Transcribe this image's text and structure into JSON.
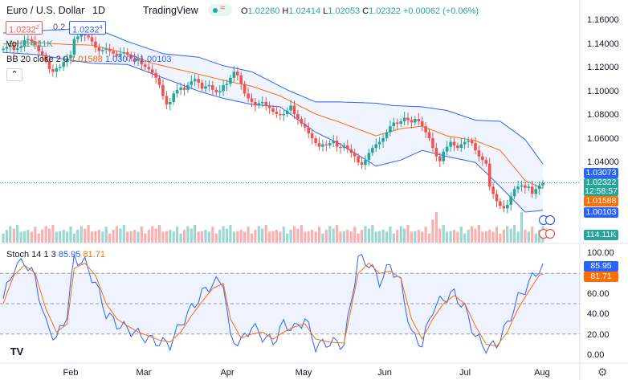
{
  "header": {
    "symbol": "Euro / U.S. Dollar",
    "interval": "1D",
    "brand": "TradingView",
    "ohlc": {
      "o_label": "O",
      "o_value": "1.02260",
      "h_label": "H",
      "h_value": "1.02414",
      "l_label": "L",
      "l_value": "1.02053",
      "c_label": "C",
      "c_value": "1.02322",
      "change": "+0.00062 (+0.06%)"
    }
  },
  "trade": {
    "sell_price": "1.0232",
    "sell_sup": "2",
    "spread": "0.2",
    "buy_price": "1.0232",
    "buy_sup": "4"
  },
  "indicators": {
    "volume": {
      "label": "Vol",
      "value": "114.11K"
    },
    "bb": {
      "label": "BB 20 close 2 0",
      "basis": "1.01588",
      "upper": "1.03073",
      "lower": "1.00103"
    },
    "stoch": {
      "label": "Stoch 14 1 3",
      "k": "85.95",
      "d": "81.71"
    }
  },
  "price_axis": {
    "ticks": [
      "1.16000",
      "1.14000",
      "1.12000",
      "1.10000",
      "1.08000",
      "1.06000",
      "1.04000"
    ],
    "badges": {
      "upper": "1.03073",
      "last": "1.02322",
      "countdown": "12:58:57",
      "basis": "1.01588",
      "lower": "1.00103",
      "volume": "114.11K"
    }
  },
  "stoch_axis": {
    "ticks": [
      "100.00",
      "60.00",
      "40.00",
      "20.00",
      "0.00"
    ],
    "badges": {
      "k": "85.95",
      "d": "81.71"
    }
  },
  "time_axis": {
    "labels": [
      "Feb",
      "Mar",
      "Apr",
      "May",
      "Jun",
      "Jul",
      "Aug"
    ]
  },
  "colors": {
    "up": "#26a69a",
    "down": "#ef5350",
    "bb_band": "#2962ff",
    "bb_basis": "#ff6d00",
    "stoch_k": "#2962ff",
    "stoch_d": "#ff6d00",
    "last_price": "#26a69a"
  },
  "chart_data": [
    {
      "type": "candlestick",
      "title": "Euro / U.S. Dollar · 1D",
      "ylim": [
        0.995,
        1.165
      ],
      "x_range": [
        "Jan",
        "Aug"
      ],
      "closes": [
        1.134,
        1.1355,
        1.137,
        1.133,
        1.1345,
        1.136,
        1.141,
        1.142,
        1.14,
        1.137,
        1.132,
        1.129,
        1.124,
        1.117,
        1.115,
        1.118,
        1.119,
        1.123,
        1.126,
        1.129,
        1.142,
        1.144,
        1.146,
        1.145,
        1.1435,
        1.14,
        1.135,
        1.132,
        1.133,
        1.134,
        1.132,
        1.13,
        1.128,
        1.13,
        1.131,
        1.129,
        1.126,
        1.124,
        1.126,
        1.121,
        1.119,
        1.117,
        1.114,
        1.11,
        1.104,
        1.095,
        1.088,
        1.09,
        1.097,
        1.1,
        1.102,
        1.1,
        1.104,
        1.107,
        1.109,
        1.106,
        1.101,
        1.103,
        1.104,
        1.1,
        1.098,
        1.099,
        1.104,
        1.105,
        1.11,
        1.115,
        1.112,
        1.105,
        1.097,
        1.093,
        1.09,
        1.087,
        1.089,
        1.09,
        1.087,
        1.085,
        1.082,
        1.08,
        1.079,
        1.08,
        1.083,
        1.087,
        1.08,
        1.076,
        1.072,
        1.069,
        1.064,
        1.06,
        1.056,
        1.053,
        1.055,
        1.054,
        1.056,
        1.058,
        1.053,
        1.052,
        1.054,
        1.051,
        1.048,
        1.045,
        1.04,
        1.038,
        1.042,
        1.048,
        1.052,
        1.055,
        1.057,
        1.06,
        1.065,
        1.07,
        1.073,
        1.072,
        1.074,
        1.077,
        1.075,
        1.073,
        1.076,
        1.074,
        1.07,
        1.065,
        1.06,
        1.052,
        1.045,
        1.041,
        1.049,
        1.053,
        1.057,
        1.054,
        1.052,
        1.055,
        1.057,
        1.058,
        1.056,
        1.05,
        1.045,
        1.042,
        1.039,
        1.02,
        1.014,
        1.008,
        1.004,
        1.002,
        1.005,
        1.012,
        1.018,
        1.02,
        1.021,
        1.019,
        1.02,
        1.014,
        1.018,
        1.021,
        1.02322
      ],
      "bb_upper_anchors": [
        [
          0,
          1.147
        ],
        [
          10,
          1.149
        ],
        [
          18,
          1.15
        ],
        [
          25,
          1.152
        ],
        [
          35,
          1.14
        ],
        [
          45,
          1.13
        ],
        [
          55,
          1.127
        ],
        [
          62,
          1.12
        ],
        [
          70,
          1.115
        ],
        [
          80,
          1.1
        ],
        [
          88,
          1.09
        ],
        [
          95,
          1.09
        ],
        [
          105,
          1.089
        ],
        [
          110,
          1.087
        ],
        [
          118,
          1.086
        ],
        [
          125,
          1.083
        ],
        [
          133,
          1.075
        ],
        [
          140,
          1.074
        ],
        [
          147,
          1.059
        ],
        [
          154,
          1.0307
        ]
      ],
      "bb_basis_anchors": [
        [
          0,
          1.138
        ],
        [
          10,
          1.139
        ],
        [
          18,
          1.1375
        ],
        [
          25,
          1.137
        ],
        [
          35,
          1.13
        ],
        [
          42,
          1.122
        ],
        [
          55,
          1.113
        ],
        [
          62,
          1.108
        ],
        [
          70,
          1.103
        ],
        [
          78,
          1.095
        ],
        [
          88,
          1.08
        ],
        [
          95,
          1.073
        ],
        [
          105,
          1.062
        ],
        [
          112,
          1.068
        ],
        [
          118,
          1.07
        ],
        [
          125,
          1.062
        ],
        [
          133,
          1.058
        ],
        [
          140,
          1.05
        ],
        [
          147,
          1.025
        ],
        [
          154,
          1.0159
        ]
      ],
      "bb_lower_anchors": [
        [
          0,
          1.131
        ],
        [
          10,
          1.129
        ],
        [
          18,
          1.125
        ],
        [
          25,
          1.122
        ],
        [
          35,
          1.121
        ],
        [
          45,
          1.11
        ],
        [
          55,
          1.099
        ],
        [
          62,
          1.093
        ],
        [
          70,
          1.088
        ],
        [
          78,
          1.086
        ],
        [
          88,
          1.065
        ],
        [
          95,
          1.055
        ],
        [
          105,
          1.037
        ],
        [
          112,
          1.042
        ],
        [
          118,
          1.05
        ],
        [
          125,
          1.045
        ],
        [
          133,
          1.04
        ],
        [
          140,
          1.02
        ],
        [
          147,
          0.999
        ],
        [
          154,
          1.001
        ]
      ]
    },
    {
      "type": "bar",
      "title": "Vol",
      "ylabel": "Volume",
      "last_value": "114.11K",
      "relative_volume_pattern": [
        0.3,
        0.34,
        0.38,
        0.42,
        0.46,
        0.36,
        0.3,
        0.26,
        0.32,
        0.4
      ]
    },
    {
      "type": "line",
      "title": "Stoch 14 1 3",
      "ylim": [
        0,
        100
      ],
      "reference_lines": [
        80,
        50,
        20
      ],
      "series": [
        {
          "name": "%K",
          "anchors": [
            [
              0,
              55
            ],
            [
              3,
              85
            ],
            [
              6,
              92
            ],
            [
              9,
              75
            ],
            [
              12,
              30
            ],
            [
              15,
              15
            ],
            [
              18,
              40
            ],
            [
              20,
              95
            ],
            [
              23,
              90
            ],
            [
              26,
              70
            ],
            [
              29,
              40
            ],
            [
              32,
              30
            ],
            [
              35,
              25
            ],
            [
              38,
              20
            ],
            [
              41,
              15
            ],
            [
              44,
              12
            ],
            [
              47,
              10
            ],
            [
              50,
              30
            ],
            [
              53,
              45
            ],
            [
              56,
              60
            ],
            [
              59,
              70
            ],
            [
              62,
              72
            ],
            [
              64,
              15
            ],
            [
              67,
              12
            ],
            [
              70,
              28
            ],
            [
              73,
              18
            ],
            [
              76,
              12
            ],
            [
              79,
              30
            ],
            [
              82,
              25
            ],
            [
              85,
              35
            ],
            [
              88,
              8
            ],
            [
              92,
              12
            ],
            [
              96,
              10
            ],
            [
              100,
              95
            ],
            [
              103,
              90
            ],
            [
              106,
              72
            ],
            [
              109,
              88
            ],
            [
              112,
              70
            ],
            [
              115,
              20
            ],
            [
              118,
              10
            ],
            [
              121,
              45
            ],
            [
              124,
              55
            ],
            [
              127,
              60
            ],
            [
              130,
              45
            ],
            [
              133,
              18
            ],
            [
              136,
              5
            ],
            [
              139,
              10
            ],
            [
              142,
              30
            ],
            [
              145,
              55
            ],
            [
              148,
              70
            ],
            [
              151,
              85
            ],
            [
              154,
              85.95
            ]
          ]
        },
        {
          "name": "%D",
          "anchors": [
            [
              0,
              50
            ],
            [
              3,
              78
            ],
            [
              6,
              88
            ],
            [
              9,
              80
            ],
            [
              12,
              45
            ],
            [
              15,
              22
            ],
            [
              18,
              30
            ],
            [
              20,
              85
            ],
            [
              23,
              90
            ],
            [
              26,
              78
            ],
            [
              29,
              50
            ],
            [
              32,
              35
            ],
            [
              35,
              28
            ],
            [
              38,
              22
            ],
            [
              41,
              18
            ],
            [
              44,
              14
            ],
            [
              47,
              12
            ],
            [
              50,
              22
            ],
            [
              53,
              38
            ],
            [
              56,
              52
            ],
            [
              59,
              65
            ],
            [
              62,
              70
            ],
            [
              64,
              35
            ],
            [
              67,
              16
            ],
            [
              70,
              20
            ],
            [
              73,
              22
            ],
            [
              76,
              15
            ],
            [
              79,
              22
            ],
            [
              82,
              27
            ],
            [
              85,
              30
            ],
            [
              88,
              15
            ],
            [
              92,
              12
            ],
            [
              96,
              11
            ],
            [
              100,
              80
            ],
            [
              103,
              90
            ],
            [
              106,
              80
            ],
            [
              109,
              82
            ],
            [
              112,
              75
            ],
            [
              115,
              35
            ],
            [
              118,
              15
            ],
            [
              121,
              35
            ],
            [
              124,
              50
            ],
            [
              127,
              58
            ],
            [
              130,
              50
            ],
            [
              133,
              28
            ],
            [
              136,
              10
            ],
            [
              139,
              8
            ],
            [
              142,
              22
            ],
            [
              145,
              45
            ],
            [
              148,
              62
            ],
            [
              151,
              78
            ],
            [
              154,
              81.71
            ]
          ]
        }
      ]
    }
  ]
}
